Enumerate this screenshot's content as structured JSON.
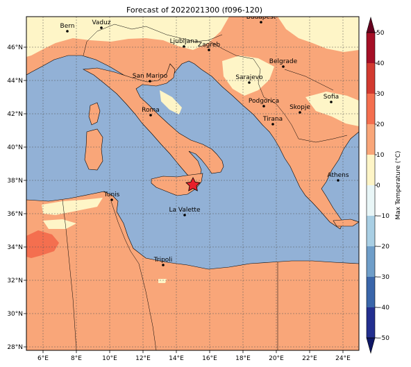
{
  "title": "Forecast of 2022021300 (f096-120)",
  "colorbar": {
    "label": "Max Temperature (°C)",
    "ticks": [
      "50",
      "40",
      "30",
      "20",
      "10",
      "0",
      "−10",
      "−20",
      "−30",
      "−40",
      "−50"
    ],
    "colors": [
      "#67001f",
      "#b2182b",
      "#d6604d",
      "#f4a582",
      "#fddbc7",
      "#f7f7f7",
      "#d1e5f0",
      "#92c5de",
      "#4393c3",
      "#2166ac",
      "#053061"
    ]
  },
  "axes": {
    "x_ticks": [
      "6°E",
      "8°E",
      "10°E",
      "12°E",
      "14°E",
      "16°E",
      "18°E",
      "20°E",
      "22°E",
      "24°E"
    ],
    "y_ticks": [
      "46°N",
      "44°N",
      "42°N",
      "40°N",
      "38°N",
      "36°N",
      "34°N",
      "32°N",
      "30°N",
      "28°N"
    ]
  },
  "colors": {
    "sea": "#92b1d6",
    "warm_land": "#f9a679",
    "cool_land": "#fef5c7",
    "hot_land": "#f46f4f"
  },
  "cities": [
    {
      "name": "Bern"
    },
    {
      "name": "Vaduz"
    },
    {
      "name": "Budapest"
    },
    {
      "name": "Ljubljana"
    },
    {
      "name": "Zagreb"
    },
    {
      "name": "San Marino"
    },
    {
      "name": "Sarajevo"
    },
    {
      "name": "Belgrade"
    },
    {
      "name": "Sofia"
    },
    {
      "name": "Podgorica"
    },
    {
      "name": "Skopje"
    },
    {
      "name": "Roma"
    },
    {
      "name": "Tirana"
    },
    {
      "name": "Athens"
    },
    {
      "name": "Tunis"
    },
    {
      "name": "La Valette"
    },
    {
      "name": "Tripoli"
    }
  ],
  "marker": {
    "symbol": "star"
  }
}
